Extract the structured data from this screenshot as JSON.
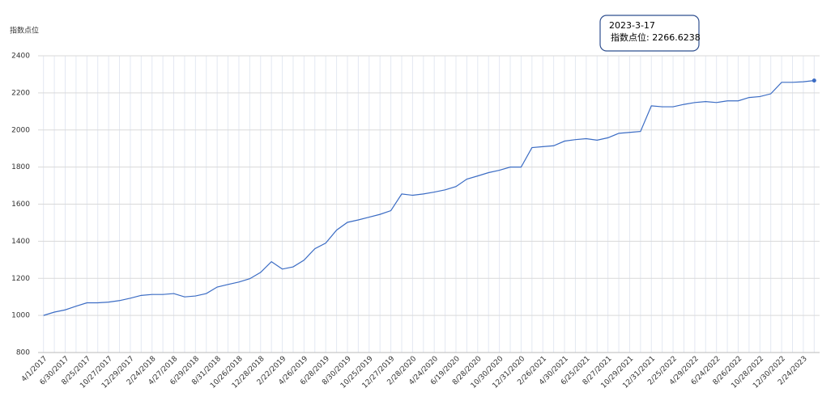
{
  "chart_data": {
    "type": "line",
    "y_label": "指数点位",
    "categories": [
      "4/1/2017",
      null,
      "6/30/2017",
      null,
      "8/25/2017",
      null,
      "10/27/2017",
      null,
      "12/29/2017",
      null,
      "2/24/2018",
      null,
      "4/27/2018",
      null,
      "6/29/2018",
      null,
      "8/31/2018",
      null,
      "10/26/2018",
      null,
      "12/28/2018",
      null,
      "2/22/2019",
      null,
      "4/26/2019",
      null,
      "6/28/2019",
      null,
      "8/30/2019",
      null,
      "10/25/2019",
      null,
      "12/27/2019",
      null,
      "2/28/2020",
      null,
      "4/24/2020",
      null,
      "6/19/2020",
      null,
      "8/28/2020",
      null,
      "10/30/2020",
      null,
      "12/31/2020",
      null,
      "2/26/2021",
      null,
      "4/30/2021",
      null,
      "6/25/2021",
      null,
      "8/27/2021",
      null,
      "10/29/2021",
      null,
      "12/31/2021",
      null,
      "2/25/2022",
      null,
      "4/29/2022",
      null,
      "6/24/2022",
      null,
      "8/26/2022",
      null,
      "10/28/2022",
      null,
      "12/30/2022",
      null,
      "2/24/2023",
      null
    ],
    "series": [
      {
        "name": "指数点位",
        "color": "#3b6cc4",
        "values": [
          1000,
          1018,
          1030,
          1050,
          1068,
          1068,
          1072,
          1080,
          1093,
          1108,
          1113,
          1113,
          1118,
          1100,
          1105,
          1118,
          1153,
          1167,
          1180,
          1198,
          1232,
          1290,
          1250,
          1262,
          1298,
          1360,
          1390,
          1460,
          1502,
          1515,
          1530,
          1545,
          1565,
          1655,
          1648,
          1655,
          1665,
          1677,
          1695,
          1735,
          1752,
          1770,
          1783,
          1800,
          1800,
          1905,
          1910,
          1915,
          1940,
          1948,
          1953,
          1945,
          1958,
          1982,
          1987,
          1992,
          2130,
          2125,
          2125,
          2138,
          2148,
          2153,
          2148,
          2157,
          2157,
          2175,
          2180,
          2195,
          2257,
          2257,
          2260,
          2266.6238
        ]
      }
    ],
    "ylim": [
      800,
      2400
    ],
    "yticks": [
      800,
      1000,
      1200,
      1400,
      1600,
      1800,
      2000,
      2200,
      2400
    ],
    "grid": true,
    "tooltip": {
      "date": "2023-3-17",
      "text": "指数点位: 2266.6238"
    }
  }
}
